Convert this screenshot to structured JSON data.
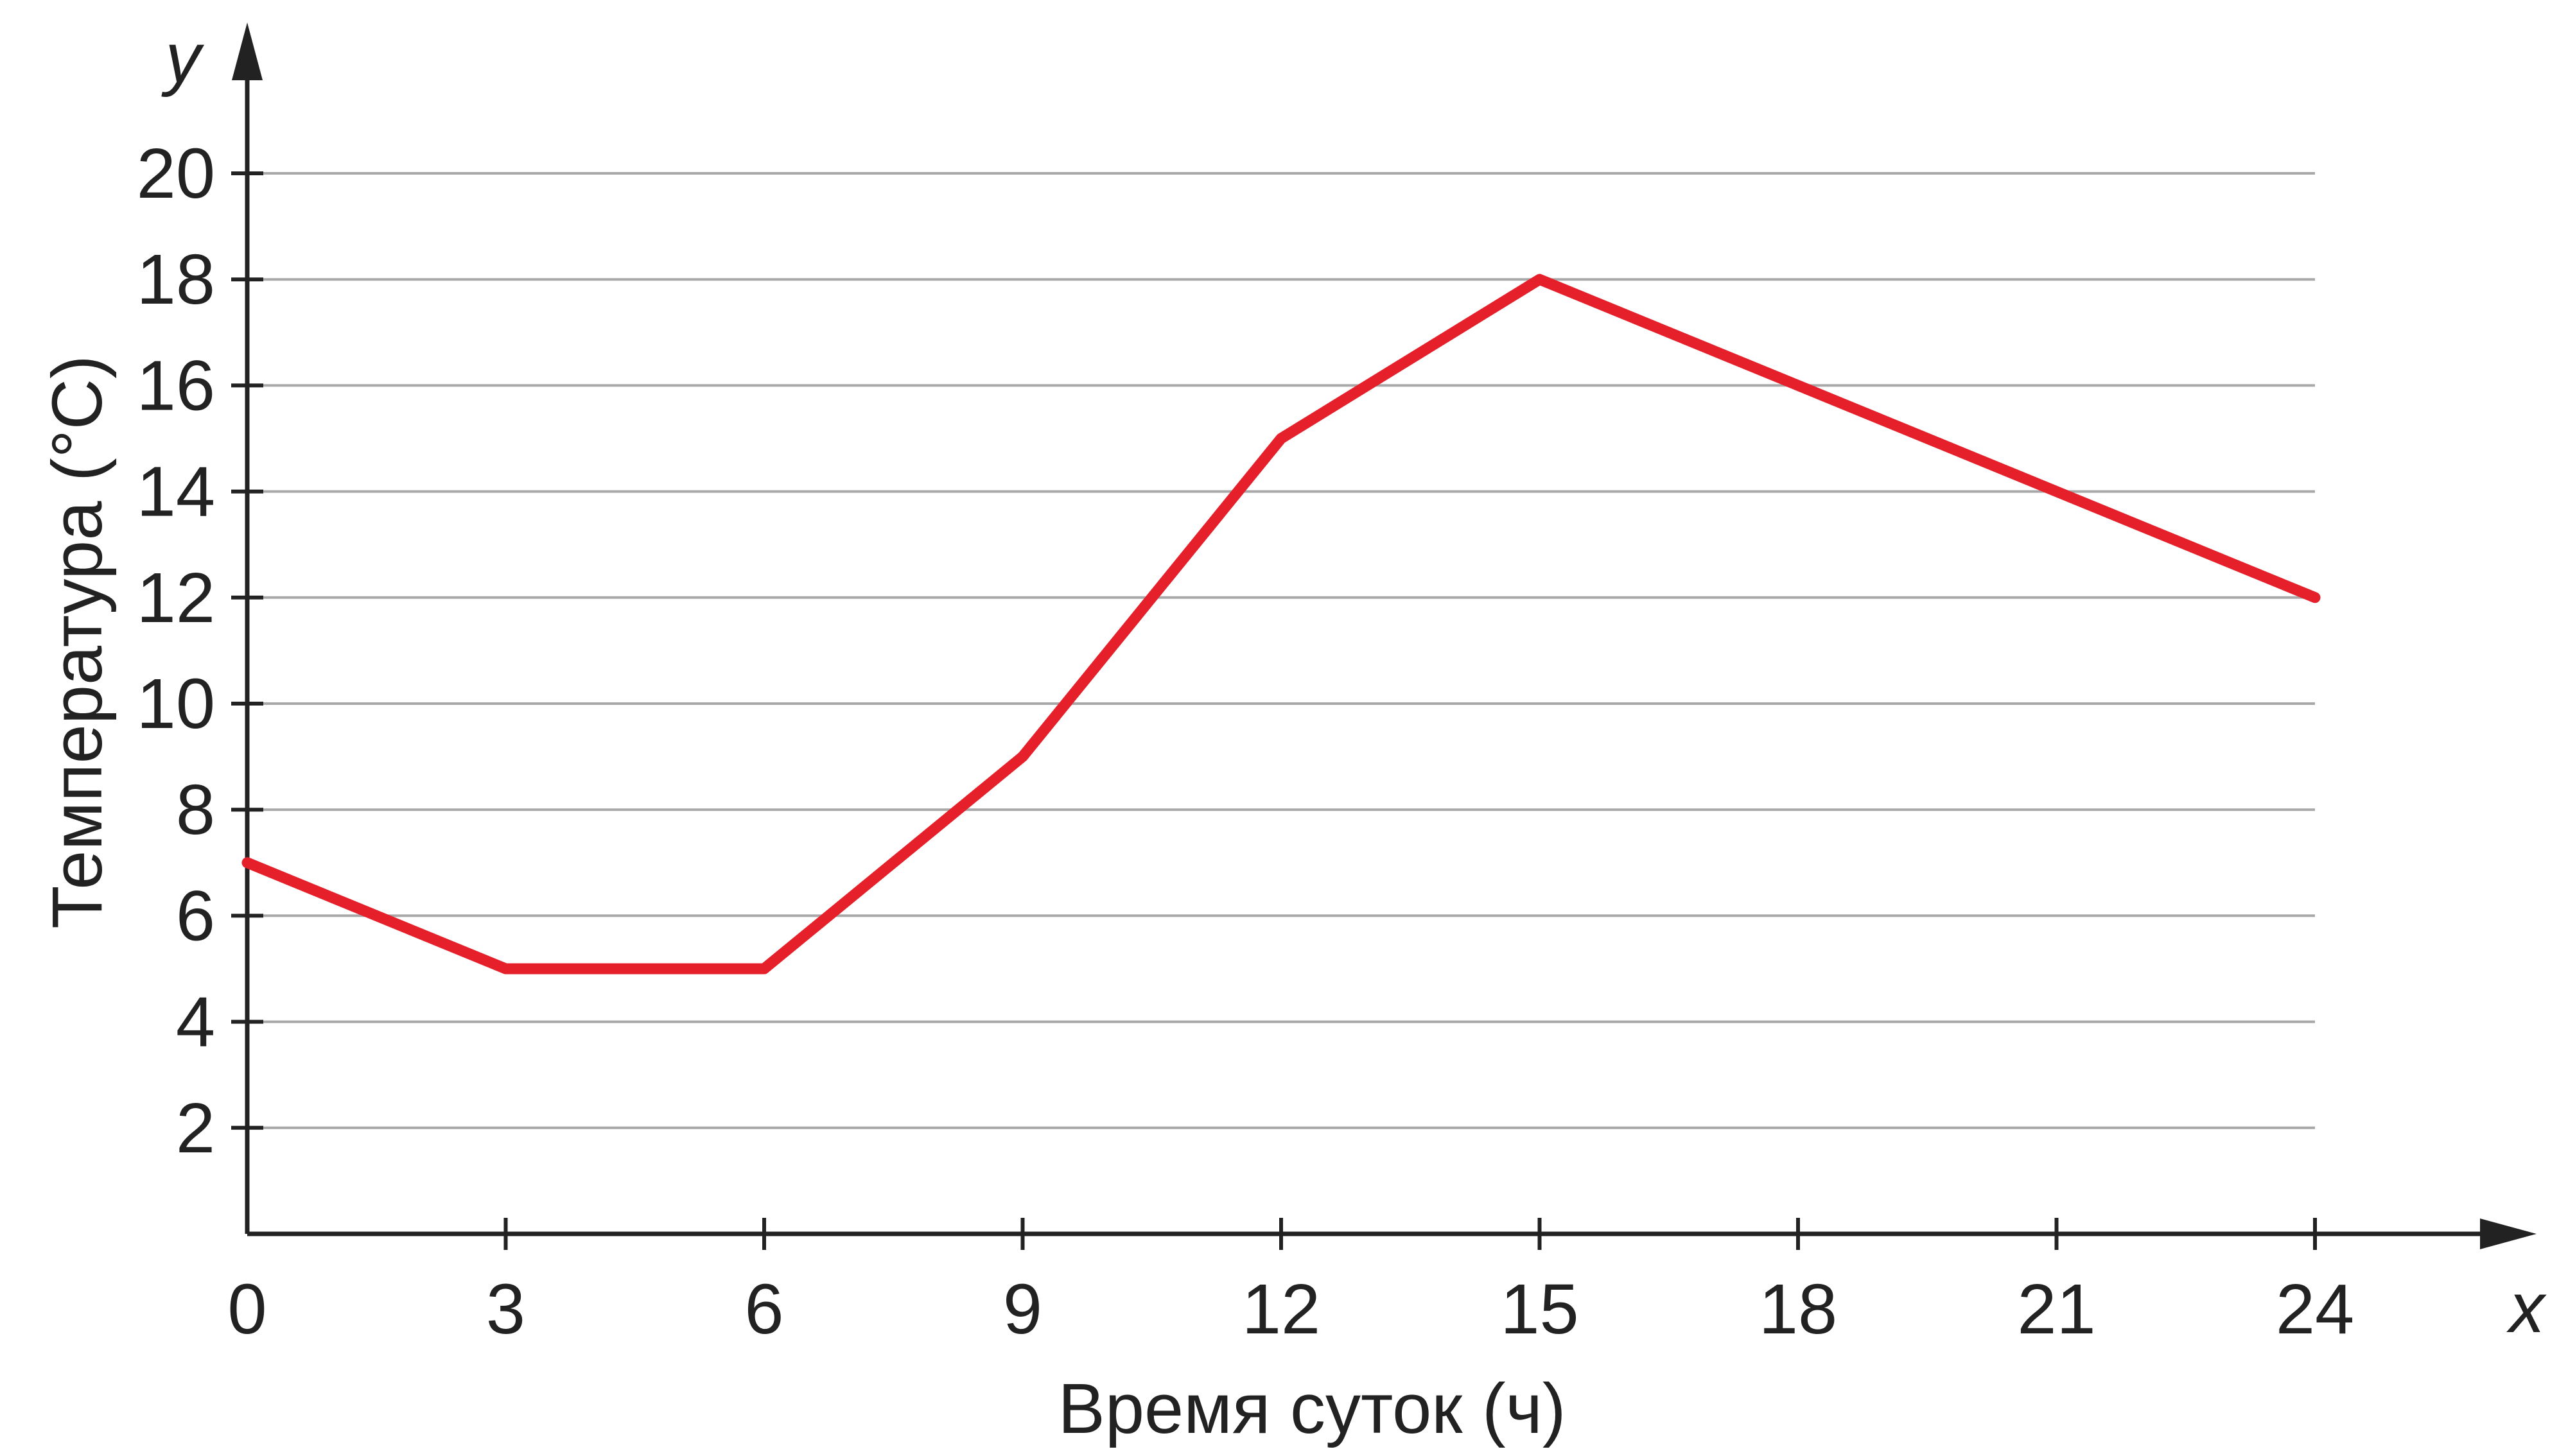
{
  "chart_data": {
    "type": "line",
    "title": "",
    "xlabel": "Время суток (ч)",
    "ylabel": "Температура (°C)",
    "x_axis_letter": "x",
    "y_axis_letter": "y",
    "xlim": [
      0,
      24
    ],
    "ylim": [
      0,
      20
    ],
    "x_ticks": [
      0,
      3,
      6,
      9,
      12,
      15,
      18,
      21,
      24
    ],
    "y_ticks": [
      2,
      4,
      6,
      8,
      10,
      12,
      14,
      16,
      18,
      20
    ],
    "grid": true,
    "series": [
      {
        "x": [
          0,
          3,
          6,
          9,
          12,
          15,
          18,
          21,
          24
        ],
        "y": [
          7,
          5,
          5,
          9,
          15,
          18,
          16,
          14,
          12
        ],
        "color": "#e5202a"
      }
    ],
    "grid_color": "#a8a8a8",
    "axis_color": "#222222"
  }
}
